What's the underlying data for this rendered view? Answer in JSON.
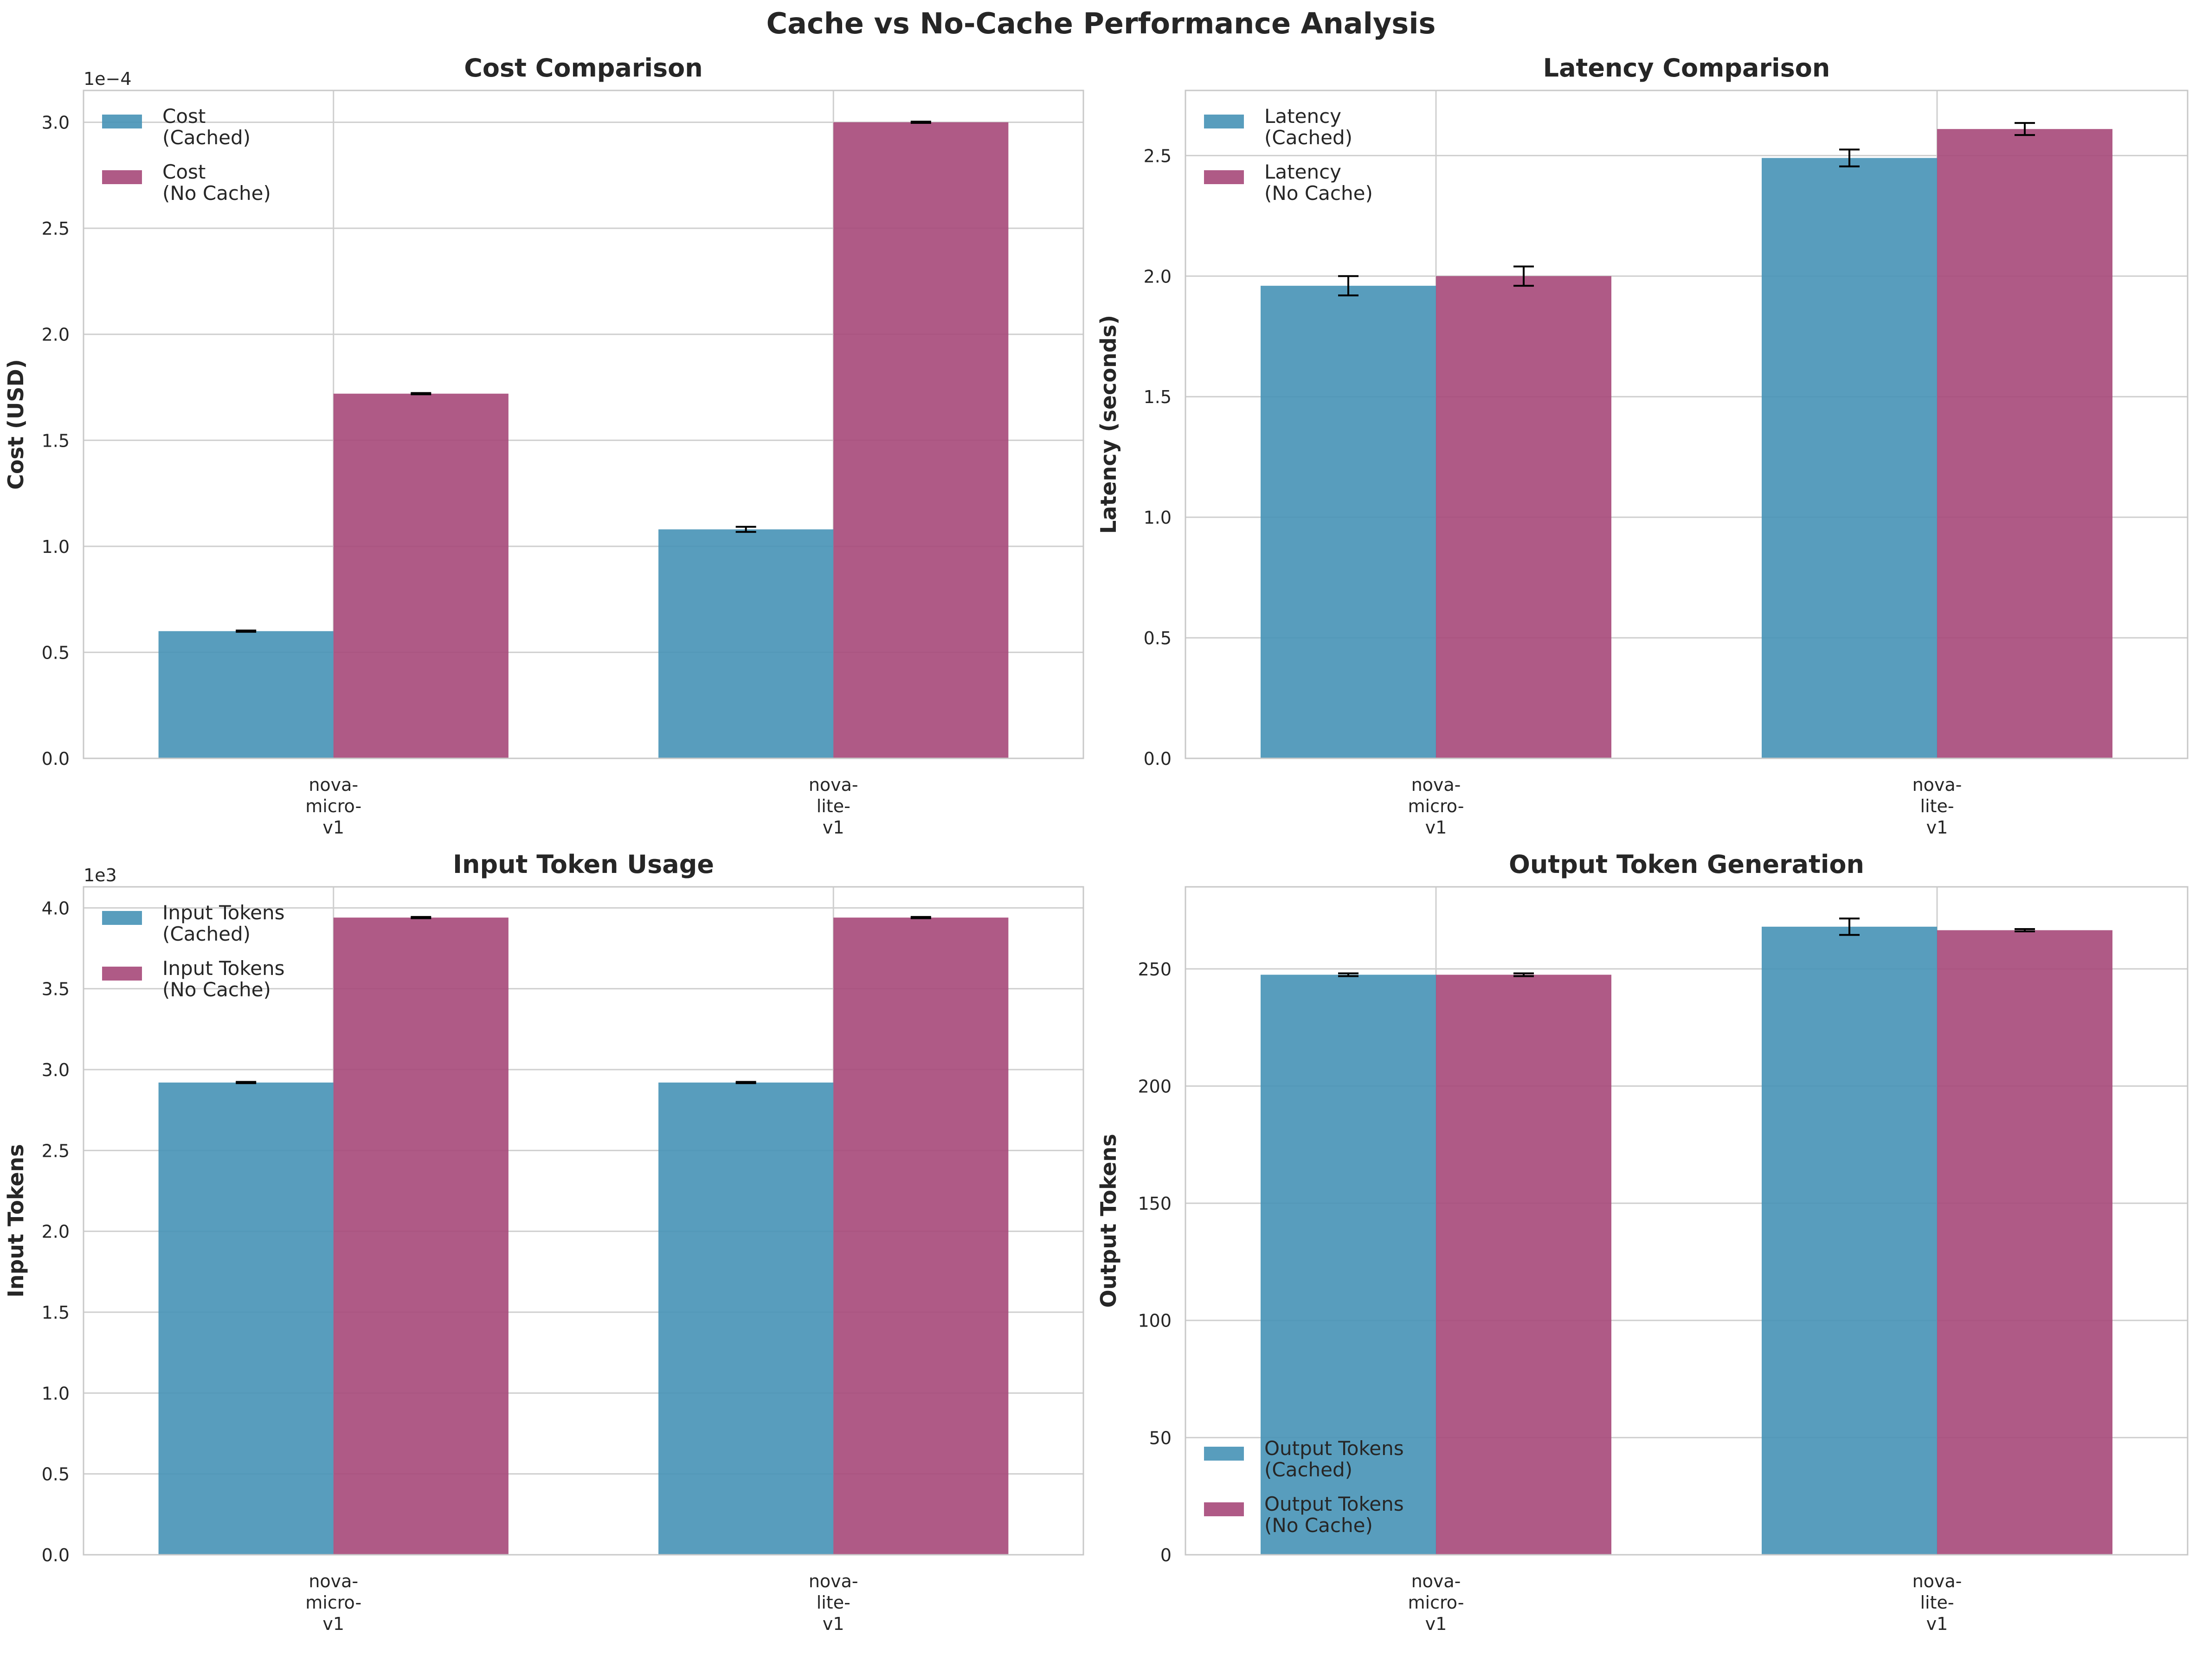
{
  "figure_title": "Cache vs No-Cache Performance Analysis",
  "colors": {
    "cached": "#4A95B7",
    "no_cache": "#A84C7C",
    "grid": "#cfcfcf",
    "frame": "#c8c8c8"
  },
  "chart_data": [
    {
      "type": "bar",
      "title": "Cost Comparison",
      "ylabel": "Cost (USD)",
      "xlabel": "",
      "offset_text": "1e−4",
      "categories": [
        "nova-\nmicro-\nv1",
        "nova-\nlite-\nv1"
      ],
      "series": [
        {
          "name": "Cost\n(Cached)",
          "values": [
            0.6,
            1.08
          ],
          "errors": [
            0.003,
            0.012
          ]
        },
        {
          "name": "Cost\n(No Cache)",
          "values": [
            1.72,
            3.0
          ],
          "errors": [
            0.003,
            0.003
          ]
        }
      ],
      "ylim": [
        0,
        3.15
      ],
      "yticks": [
        0.0,
        0.5,
        1.0,
        1.5,
        2.0,
        2.5,
        3.0
      ],
      "ytick_labels": [
        "0.0",
        "0.5",
        "1.0",
        "1.5",
        "2.0",
        "2.5",
        "3.0"
      ],
      "legend": "upper-left",
      "grid": true
    },
    {
      "type": "bar",
      "title": "Latency Comparison",
      "ylabel": "Latency (seconds)",
      "xlabel": "",
      "offset_text": "",
      "categories": [
        "nova-\nmicro-\nv1",
        "nova-\nlite-\nv1"
      ],
      "series": [
        {
          "name": "Latency\n(Cached)",
          "values": [
            1.96,
            2.49
          ],
          "errors": [
            0.04,
            0.035
          ]
        },
        {
          "name": "Latency\n(No Cache)",
          "values": [
            2.0,
            2.61
          ],
          "errors": [
            0.04,
            0.025
          ]
        }
      ],
      "ylim": [
        0,
        2.77
      ],
      "yticks": [
        0.0,
        0.5,
        1.0,
        1.5,
        2.0,
        2.5
      ],
      "ytick_labels": [
        "0.0",
        "0.5",
        "1.0",
        "1.5",
        "2.0",
        "2.5"
      ],
      "legend": "upper-left",
      "grid": true
    },
    {
      "type": "bar",
      "title": "Input Token Usage",
      "ylabel": "Input Tokens",
      "xlabel": "",
      "offset_text": "1e3",
      "categories": [
        "nova-\nmicro-\nv1",
        "nova-\nlite-\nv1"
      ],
      "series": [
        {
          "name": "Input Tokens\n(Cached)",
          "values": [
            2.92,
            2.92
          ],
          "errors": [
            0.004,
            0.004
          ]
        },
        {
          "name": "Input Tokens\n(No Cache)",
          "values": [
            3.94,
            3.94
          ],
          "errors": [
            0.004,
            0.004
          ]
        }
      ],
      "ylim": [
        0,
        4.13
      ],
      "yticks": [
        0.0,
        0.5,
        1.0,
        1.5,
        2.0,
        2.5,
        3.0,
        3.5,
        4.0
      ],
      "ytick_labels": [
        "0.0",
        "0.5",
        "1.0",
        "1.5",
        "2.0",
        "2.5",
        "3.0",
        "3.5",
        "4.0"
      ],
      "legend": "upper-left",
      "grid": true
    },
    {
      "type": "bar",
      "title": "Output Token Generation",
      "ylabel": "Output Tokens",
      "xlabel": "",
      "offset_text": "",
      "categories": [
        "nova-\nmicro-\nv1",
        "nova-\nlite-\nv1"
      ],
      "series": [
        {
          "name": "Output Tokens\n(Cached)",
          "values": [
            247.5,
            268
          ],
          "errors": [
            0.6,
            3.5
          ]
        },
        {
          "name": "Output Tokens\n(No Cache)",
          "values": [
            247.5,
            266.5
          ],
          "errors": [
            0.6,
            0.5
          ]
        }
      ],
      "ylim": [
        0,
        285
      ],
      "yticks": [
        0,
        50,
        100,
        150,
        200,
        250
      ],
      "ytick_labels": [
        "0",
        "50",
        "100",
        "150",
        "200",
        "250"
      ],
      "legend": "lower-left",
      "grid": true
    }
  ]
}
